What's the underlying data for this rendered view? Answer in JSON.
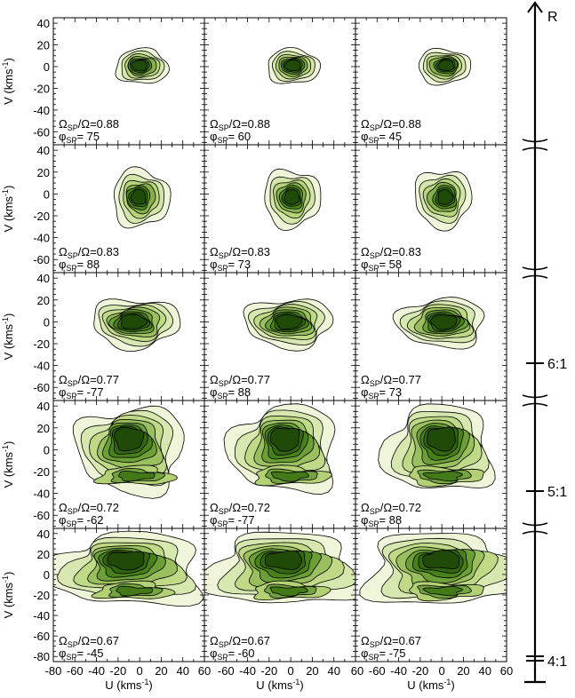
{
  "chart_data": {
    "type": "contour",
    "title": "",
    "xlabel_main": "U",
    "xlabel_unit": "(kms",
    "xlabel_exp": "-1",
    "xlabel_close": ")",
    "ylabel_main": "V",
    "ylabel_unit": "(kms",
    "ylabel_exp": "-1",
    "ylabel_close": ")",
    "xlim": [
      -80,
      60
    ],
    "x_tick_values": [
      -80,
      -60,
      -40,
      -20,
      0,
      20,
      40,
      60
    ],
    "x_tick_labels_first": [
      "-80",
      "-60",
      "-40",
      "-20",
      "0",
      "20",
      "40",
      "60"
    ],
    "x_tick_labels_other": [
      "-60",
      "-40",
      "-20",
      "0",
      "20",
      "40",
      "60"
    ],
    "ylim_default": [
      -72,
      45
    ],
    "ylim_last_row": [
      -85,
      45
    ],
    "y_tick_labels": [
      "40",
      "20",
      "0",
      "-20",
      "-40",
      "-60"
    ],
    "y_tick_labels_last_row": [
      "40",
      "20",
      "0",
      "-20",
      "-40",
      "-60",
      "-80"
    ],
    "ratio_label": "Ω",
    "ratio_sub": "SP",
    "ratio_mid": "/Ω=",
    "phi_label": "φ",
    "phi_sub": "SP",
    "phi_eq": "=",
    "rows": [
      {
        "omega_ratio": "0.88",
        "phi": [
          "75",
          "60",
          "45"
        ],
        "shape": "compact"
      },
      {
        "omega_ratio": "0.83",
        "phi": [
          "88",
          "73",
          "58"
        ],
        "shape": "compact2"
      },
      {
        "omega_ratio": "0.77",
        "phi": [
          "-77",
          "88",
          "73"
        ],
        "shape": "medium"
      },
      {
        "omega_ratio": "0.72",
        "phi": [
          "-62",
          "-77",
          "88"
        ],
        "shape": "broad"
      },
      {
        "omega_ratio": "0.67",
        "phi": [
          "-45",
          "-60",
          "-75"
        ],
        "shape": "wide"
      }
    ],
    "resonance_axis": {
      "top_label": "R",
      "markers": [
        {
          "label": "6:1",
          "row": 2
        },
        {
          "label": "5:1",
          "row": 3
        },
        {
          "label": "4:1",
          "row": 4
        }
      ]
    },
    "colors": {
      "fill_light": "#eef5d8",
      "fill_mid": "#b8d47a",
      "fill_dark": "#4f8a1c",
      "fill_core": "#1f4a08",
      "line": "#000000"
    }
  }
}
